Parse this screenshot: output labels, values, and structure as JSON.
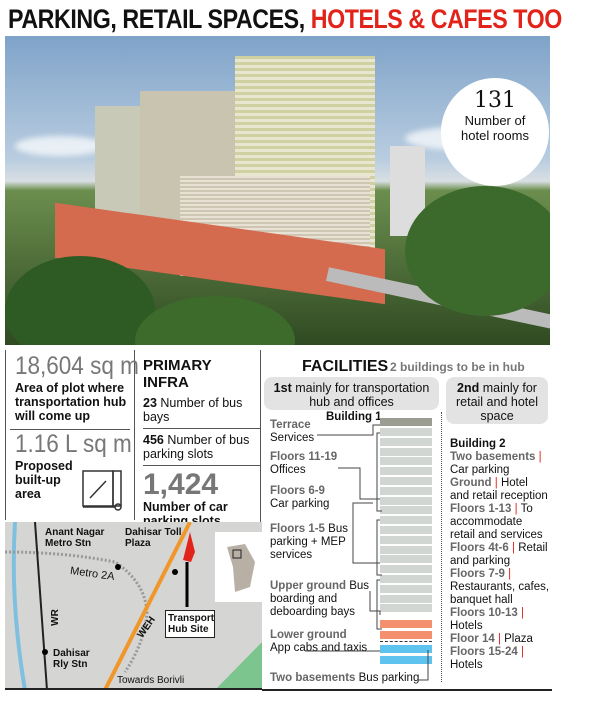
{
  "title": {
    "part1": "PARKING, RETAIL SPACES, ",
    "part2": "HOTELS & CAFES TOO"
  },
  "hotel_badge": {
    "value": "131",
    "label": "Number of hotel rooms"
  },
  "plot_area": {
    "value": "18,604 sq m",
    "label": "Area of plot where transportation hub will come up"
  },
  "builtup": {
    "value": "1.16 L sq m",
    "label": "Proposed built-up area"
  },
  "primary_infra": {
    "heading": "PRIMARY INFRA",
    "items": [
      {
        "value": "23",
        "label": "Number of bus bays"
      },
      {
        "value": "456",
        "label": "Number of bus parking slots"
      },
      {
        "value": "1,424",
        "label": "Number of car parking slots"
      }
    ]
  },
  "facilities": {
    "heading": "FACILITIES",
    "subheading": "2 buildings to be in hub",
    "building1": {
      "pill_bold": "1st",
      "pill_text": "mainly for transportation hub and offices",
      "name": "Building 1",
      "floors": [
        {
          "label": "Terrace",
          "desc": "Services"
        },
        {
          "label": "Floors 11-19",
          "desc": "Offices"
        },
        {
          "label": "Floors 6-9",
          "desc": "Car parking"
        },
        {
          "label": "Floors 1-5",
          "desc": "Bus parking + MEP services"
        },
        {
          "label": "Upper ground",
          "desc": "Bus boarding and deboarding bays"
        },
        {
          "label": "Lower ground",
          "desc": "App cabs and taxis"
        },
        {
          "label": "Two basements",
          "desc": "Bus parking"
        }
      ]
    },
    "building2": {
      "pill_bold": "2nd",
      "pill_text": "mainly for retail and hotel space",
      "name": "Building 2",
      "floors": [
        {
          "label": "Two basements",
          "desc": "Car parking"
        },
        {
          "label": "Ground",
          "desc": "Hotel and retail reception"
        },
        {
          "label": "Floors 1-13",
          "desc": "To accommodate retail and services"
        },
        {
          "label": "Floors 4t-6",
          "desc": "Retail and parking"
        },
        {
          "label": "Floors 7-9",
          "desc": "Restaurants, cafes, banquet hall"
        },
        {
          "label": "Floors 10-13",
          "desc": "Hotels"
        },
        {
          "label": "Floor 14",
          "desc": "Plaza"
        },
        {
          "label": "Floors 15-24",
          "desc": "Hotels"
        }
      ]
    }
  },
  "map": {
    "labels": {
      "anant": "Anant Nagar Metro Stn",
      "toll": "Dahisar Toll Plaza",
      "metro": "Metro 2A",
      "wr": "WR",
      "weh": "WEH",
      "dahisar": "Dahisar Rly Stn",
      "borivli": "Towards Borivli",
      "site": "Transport Hub Site"
    }
  },
  "colors": {
    "accent": "#e2231a",
    "parking_floor": "#f4906e",
    "basement": "#5ec3ef",
    "road": "#f0962a"
  }
}
